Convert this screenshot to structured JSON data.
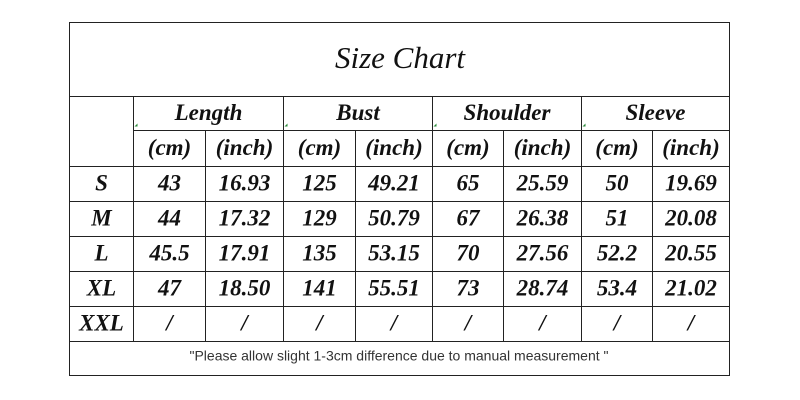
{
  "title": "Size Chart",
  "table": {
    "groups": [
      "Length",
      "Bust",
      "Shoulder",
      "Sleeve"
    ],
    "units": [
      "(cm)",
      "(inch)",
      "(cm)",
      "(inch)",
      "(cm)",
      "(inch)",
      "(cm)",
      "(inch)"
    ],
    "rows": [
      [
        "S",
        "43",
        "16.93",
        "125",
        "49.21",
        "65",
        "25.59",
        "50",
        "19.69"
      ],
      [
        "M",
        "44",
        "17.32",
        "129",
        "50.79",
        "67",
        "26.38",
        "51",
        "20.08"
      ],
      [
        "L",
        "45.5",
        "17.91",
        "135",
        "53.15",
        "70",
        "27.56",
        "52.2",
        "20.55"
      ],
      [
        "XL",
        "47",
        "18.50",
        "141",
        "55.51",
        "73",
        "28.74",
        "53.4",
        "21.02"
      ],
      [
        "XXL",
        "/",
        "/",
        "/",
        "/",
        "/",
        "/",
        "/",
        "/"
      ]
    ]
  },
  "note": "\"Please allow slight 1-3cm difference due to manual measurement \""
}
